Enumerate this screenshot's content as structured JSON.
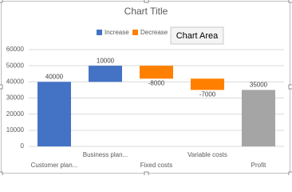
{
  "chart_data": {
    "type": "waterfall",
    "title": "Chart Title",
    "categories": [
      "Customer plan...",
      "Business plan...",
      "Fixed costs",
      "Variable costs",
      "Profit"
    ],
    "values": [
      40000,
      10000,
      -8000,
      -7000,
      35000
    ],
    "totals": [
      4
    ],
    "total_color": "#a5a5a5",
    "series": [
      {
        "name": "Increase",
        "color": "#4472c4"
      },
      {
        "name": "Decrease",
        "color": "#ff8000"
      }
    ],
    "ylim": [
      0,
      60000
    ],
    "yticks": [
      0,
      10000,
      20000,
      30000,
      40000,
      50000,
      60000
    ],
    "grid": true
  },
  "tooltip": "Chart Area"
}
